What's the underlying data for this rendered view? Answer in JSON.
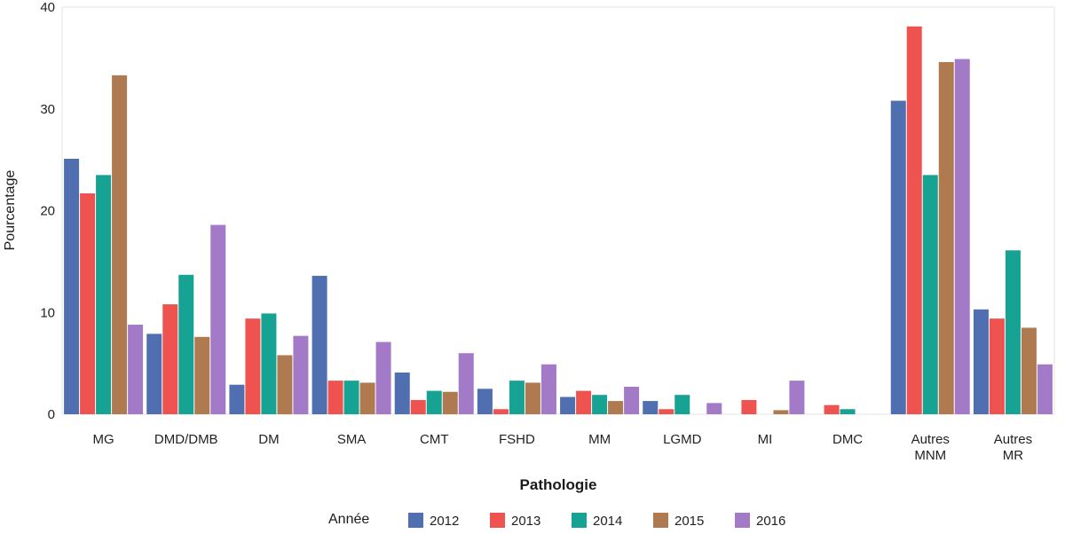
{
  "chart_data": {
    "type": "bar",
    "xlabel": "Pathologie",
    "ylabel": "Pourcentage",
    "ylim": [
      0,
      40
    ],
    "yticks": [
      "0",
      "10",
      "20",
      "30",
      "40"
    ],
    "grid": false,
    "legend_position": "bottom",
    "legend_title": "Année",
    "categories": [
      [
        "MG"
      ],
      [
        "DMD/DMB"
      ],
      [
        "DM"
      ],
      [
        "SMA"
      ],
      [
        "CMT"
      ],
      [
        "FSHD"
      ],
      [
        "MM"
      ],
      [
        "LGMD"
      ],
      [
        "MI"
      ],
      [
        "DMC"
      ],
      [
        "Autres",
        "MNM"
      ],
      [
        "Autres",
        "MR"
      ]
    ],
    "series": [
      {
        "name": "2012",
        "color": "#4f6fb0",
        "values": [
          25.1,
          7.9,
          2.9,
          13.6,
          4.1,
          2.5,
          1.7,
          1.3,
          0,
          0,
          30.8,
          10.3
        ]
      },
      {
        "name": "2013",
        "color": "#ef5350",
        "values": [
          21.7,
          10.8,
          9.4,
          3.3,
          1.4,
          0.5,
          2.3,
          0.5,
          1.4,
          0.9,
          38.1,
          9.4
        ]
      },
      {
        "name": "2014",
        "color": "#16a394",
        "values": [
          23.5,
          13.7,
          9.9,
          3.3,
          2.3,
          3.3,
          1.9,
          1.9,
          0,
          0.5,
          23.5,
          16.1
        ]
      },
      {
        "name": "2015",
        "color": "#b07a50",
        "values": [
          33.3,
          7.6,
          5.8,
          3.1,
          2.2,
          3.1,
          1.3,
          0,
          0.4,
          0,
          34.6,
          8.5
        ]
      },
      {
        "name": "2016",
        "color": "#a37ac8",
        "values": [
          8.8,
          18.6,
          7.7,
          7.1,
          6.0,
          4.9,
          2.7,
          1.1,
          3.3,
          0,
          34.9,
          4.9
        ]
      }
    ]
  }
}
